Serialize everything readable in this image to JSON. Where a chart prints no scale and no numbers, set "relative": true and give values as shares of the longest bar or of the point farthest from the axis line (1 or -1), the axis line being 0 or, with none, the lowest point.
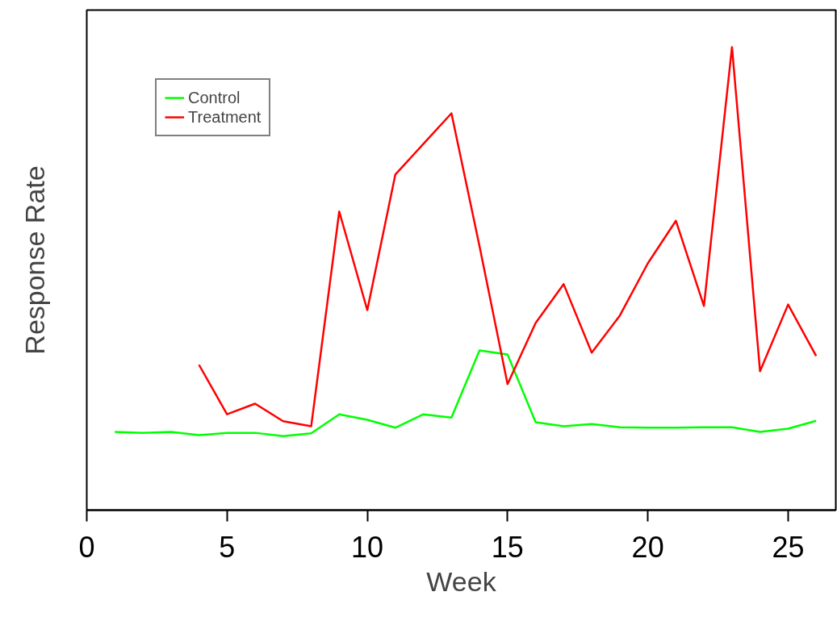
{
  "chart_data": {
    "type": "line",
    "xlabel": "Week",
    "ylabel": "Response Rate",
    "relative": true,
    "xlim": [
      0,
      26.7
    ],
    "xticks": [
      0,
      5,
      10,
      15,
      20,
      25
    ],
    "tick_labels": "x",
    "grid": false,
    "legend": "top left",
    "line_style": "solid",
    "marker": "none",
    "series": [
      {
        "name": "Control",
        "color": "#00ff00",
        "x": [
          1,
          2,
          3,
          4,
          5,
          6,
          7,
          8,
          9,
          10,
          11,
          12,
          13,
          14,
          15,
          16,
          17,
          18,
          19,
          20,
          21,
          22,
          23,
          24,
          25,
          26
        ],
        "values": [
          0.169,
          0.167,
          0.169,
          0.162,
          0.167,
          0.167,
          0.16,
          0.166,
          0.207,
          0.195,
          0.178,
          0.207,
          0.2,
          0.345,
          0.336,
          0.19,
          0.181,
          0.186,
          0.179,
          0.178,
          0.178,
          0.179,
          0.179,
          0.169,
          0.176,
          0.193
        ]
      },
      {
        "name": "Treatment",
        "color": "#ff0000",
        "x": [
          4,
          5,
          6,
          7,
          8,
          9,
          10,
          11,
          12,
          13,
          14,
          15,
          16,
          17,
          18,
          19,
          20,
          21,
          22,
          23,
          24,
          25,
          26
        ],
        "values": [
          0.314,
          0.207,
          0.23,
          0.192,
          0.181,
          0.645,
          0.432,
          0.725,
          0.791,
          0.857,
          0.57,
          0.272,
          0.404,
          0.488,
          0.34,
          0.42,
          0.533,
          0.625,
          0.441,
          1.0,
          0.3,
          0.444,
          0.333
        ]
      }
    ]
  }
}
